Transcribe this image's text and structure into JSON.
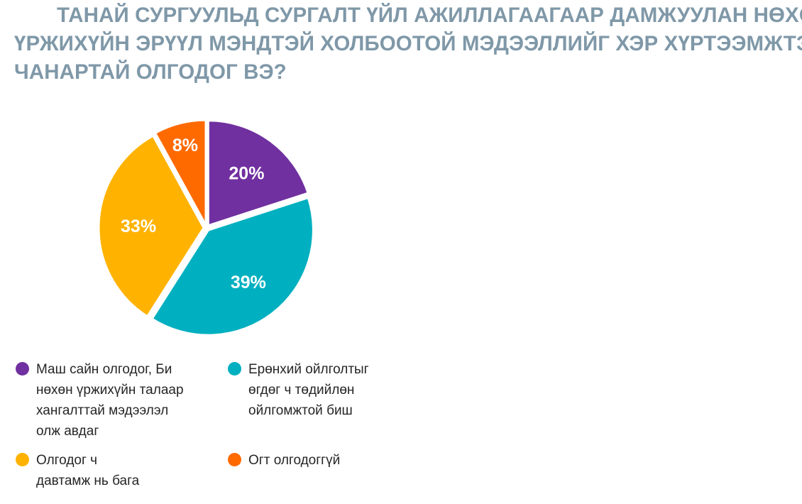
{
  "chart_data": {
    "type": "pie",
    "title": "ТАНАЙ СУРГУУЛЬД СУРГАЛТ ҮЙЛ АЖИЛЛАГААГААР ДАМЖУУЛАН НӨХӨН ҮРЖИХҮЙН ЭРҮҮЛ МЭНДТЭЙ ХОЛБООТОЙ МЭДЭЭЛЛИЙГ ХЭР ХҮРТЭЭМЖТЭЙ, ЧАНАРТАЙ ОЛГОДОГ ВЭ?",
    "title_lines": [
      "ТАНАЙ СУРГУУЛЬД СУРГАЛТ ҮЙЛ АЖИЛЛАГААГААР ДАМЖУУЛАН НӨХӨН",
      "ҮРЖИХҮЙН ЭРҮҮЛ МЭНДТЭЙ ХОЛБООТОЙ МЭДЭЭЛЛИЙГ ХЭР ХҮРТЭЭМЖТЭЙ,",
      "ЧАНАРТАЙ ОЛГОДОГ ВЭ?"
    ],
    "slices": [
      {
        "label": "Маш сайн олгодог, Би нөхөн үржихүйн талаар хангалттай мэдээлэл олж авдаг",
        "label_lines": [
          "Маш сайн олгодог, Би",
          "нөхөн үржихүйн талаар",
          "хангалттай мэдээлэл",
          "олж авдаг"
        ],
        "value": 20,
        "display": "20%",
        "color": "#7030a0"
      },
      {
        "label": "Ерөнхий ойлголтыг өгдөг ч төдийлөн ойлгомжтой биш",
        "label_lines": [
          "Ерөнхий ойлголтыг",
          "өгдөг ч төдийлөн",
          "ойлгомжтой биш"
        ],
        "value": 39,
        "display": "39%",
        "color": "#00b0c0"
      },
      {
        "label": "Олгодог ч давтамж нь бага",
        "label_lines": [
          "Олгодог ч",
          "давтамж нь бага"
        ],
        "value": 33,
        "display": "33%",
        "color": "#ffb300"
      },
      {
        "label": "Огт олгодоггүй",
        "label_lines": [
          "Огт олгодоггүй"
        ],
        "value": 8,
        "display": "8%",
        "color": "#ff6a00"
      }
    ],
    "start_angle_deg": 0,
    "direction": "clockwise",
    "legend_position": "bottom"
  }
}
